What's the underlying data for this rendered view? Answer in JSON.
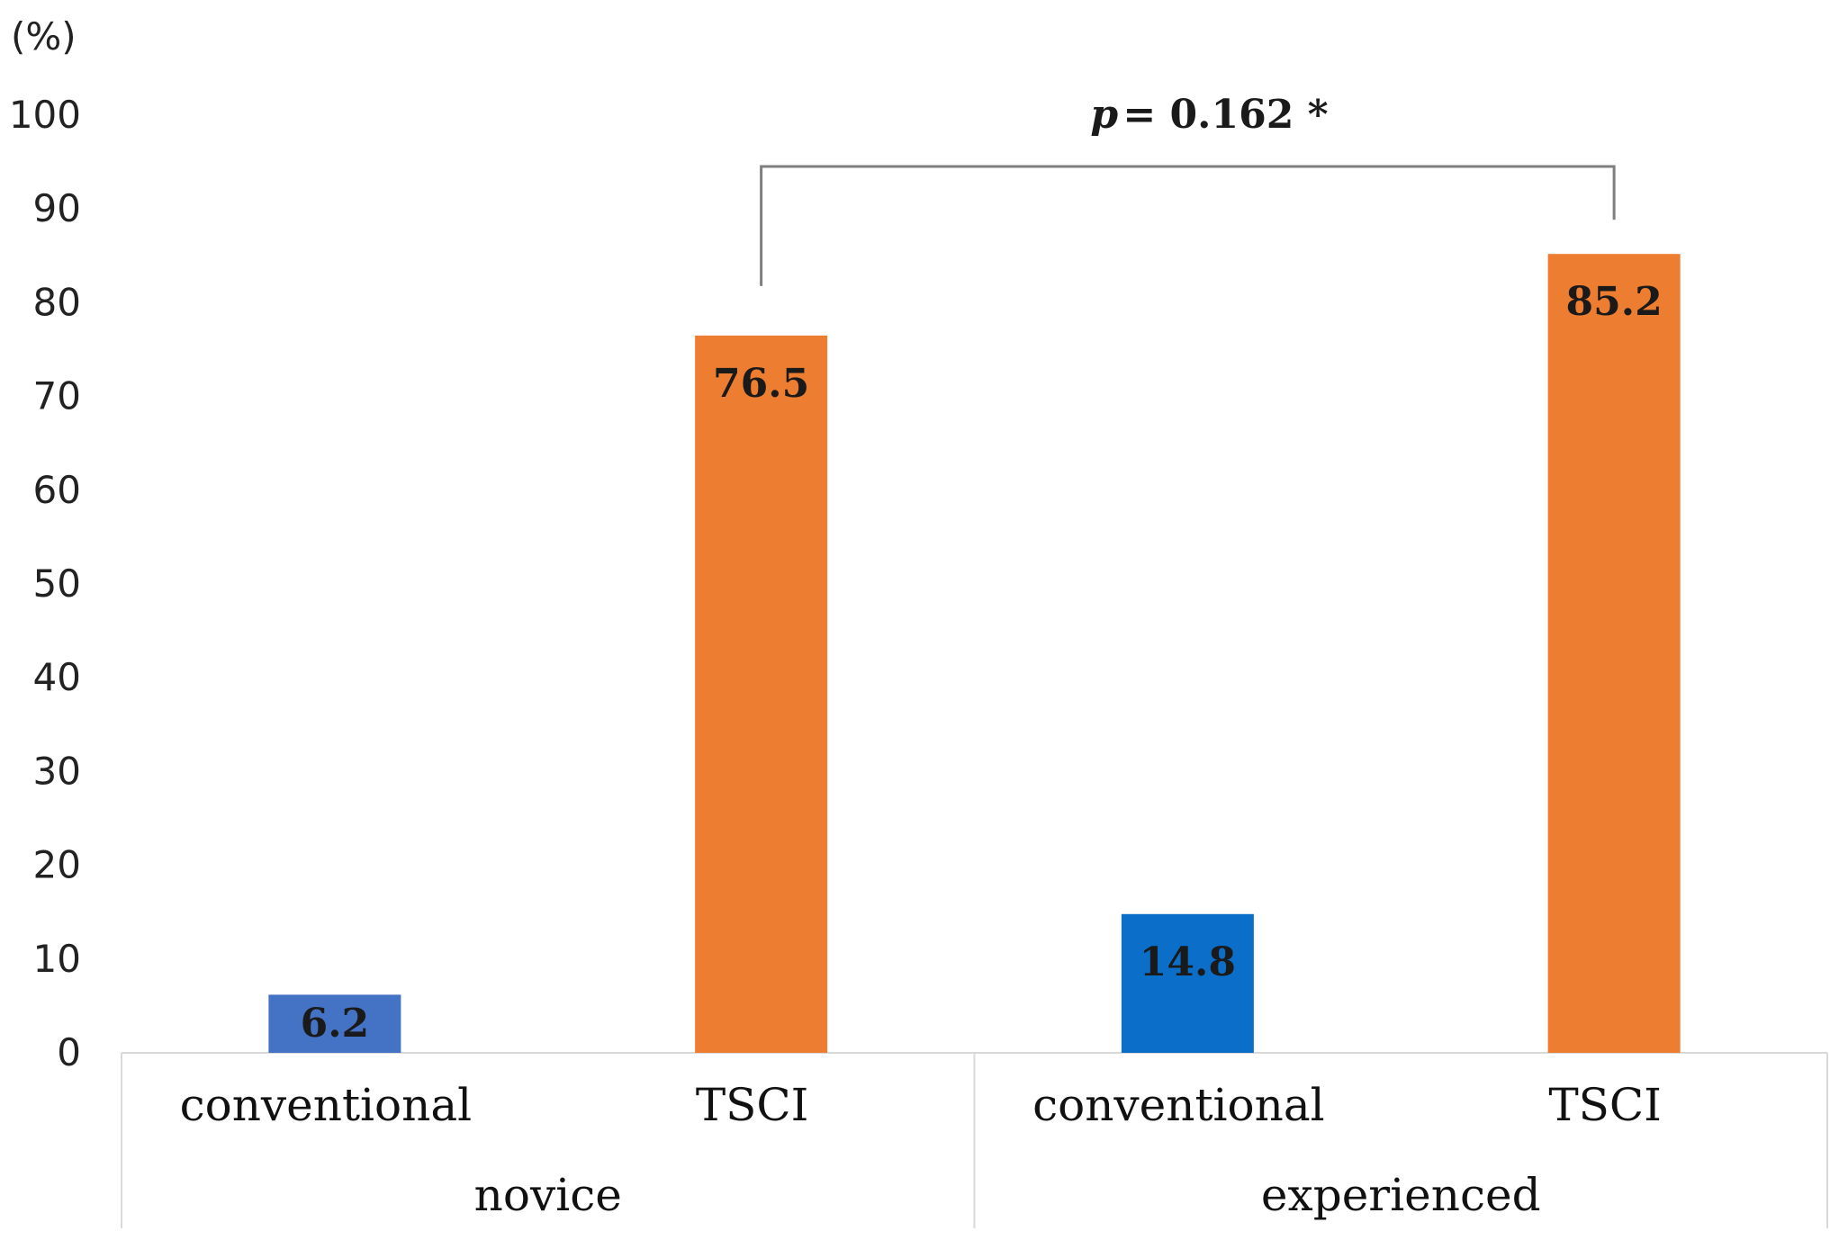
{
  "chart_data": {
    "type": "bar",
    "y_unit_label": "(%)",
    "ylim": [
      0,
      100
    ],
    "y_ticks": [
      0,
      10,
      20,
      30,
      40,
      50,
      60,
      70,
      80,
      90,
      100
    ],
    "grid": false,
    "legend": "none",
    "groups": [
      {
        "name": "novice",
        "bars": [
          {
            "category": "conventional",
            "value": 6.2,
            "label": "6.2",
            "color": "#4472c4"
          },
          {
            "category": "TSCI",
            "value": 76.5,
            "label": "76.5",
            "color": "#ed7d31"
          }
        ]
      },
      {
        "name": "experienced",
        "bars": [
          {
            "category": "conventional",
            "value": 14.8,
            "label": "14.8",
            "color": "#0b6fc9"
          },
          {
            "category": "TSCI",
            "value": 85.2,
            "label": "85.2",
            "color": "#ed7d31"
          }
        ]
      }
    ],
    "annotation": {
      "p_symbol": "p",
      "text": "= 0.162 *",
      "from_bar": "novice TSCI",
      "to_bar": "experienced TSCI"
    }
  }
}
